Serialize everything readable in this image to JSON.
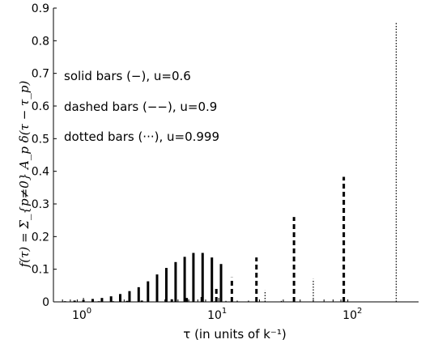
{
  "chart_data": {
    "type": "bar",
    "xscale": "log",
    "xlim": [
      0.6,
      300
    ],
    "ylim": [
      0,
      0.9
    ],
    "grid": false,
    "legend": "none",
    "xlabel": "τ (in units of k⁻¹)",
    "ylabel": "f(τ) = Σ_{p≠0} A_p δ(τ − τ_p)",
    "yticks": [
      "0",
      "0.1",
      "0.2",
      "0.3",
      "0.4",
      "0.5",
      "0.6",
      "0.7",
      "0.8",
      "0.9"
    ],
    "xticks": [
      {
        "base": "10",
        "exp": "0"
      },
      {
        "base": "10",
        "exp": "1"
      },
      {
        "base": "10",
        "exp": "2"
      }
    ],
    "annotations": [
      "solid bars (−), u=0.6",
      "dashed bars (−−), u=0.9",
      "dotted bars (···), u=0.999"
    ],
    "series": [
      {
        "style": "solid",
        "x": [
          0.73,
          0.86,
          1.0,
          1.17,
          1.37,
          1.6,
          1.87,
          2.19,
          2.56,
          3.0,
          3.5,
          4.1,
          4.8,
          5.6,
          6.5,
          7.6,
          8.9,
          10.4
        ],
        "values": [
          0.002,
          0.004,
          0.006,
          0.009,
          0.012,
          0.017,
          0.024,
          0.033,
          0.045,
          0.063,
          0.084,
          0.104,
          0.122,
          0.138,
          0.15,
          0.15,
          0.136,
          0.116
        ]
      },
      {
        "style": "dashed",
        "x": [
          0.85,
          1.05,
          1.3,
          1.65,
          2.1,
          2.7,
          3.5,
          4.5,
          5.8,
          7.5,
          9.6,
          12.5,
          19,
          36,
          84
        ],
        "values": [
          0.001,
          0.001,
          0.002,
          0.002,
          0.003,
          0.004,
          0.006,
          0.008,
          0.012,
          0.018,
          0.045,
          0.075,
          0.136,
          0.26,
          0.383
        ]
      },
      {
        "style": "dotted",
        "x": [
          4.3,
          5.2,
          6.3,
          7.7,
          9.3,
          11.3,
          13.7,
          16.6,
          22,
          29,
          50,
          205
        ],
        "values": [
          0.001,
          0.001,
          0.001,
          0.002,
          0.002,
          0.003,
          0.004,
          0.005,
          0.035,
          0.003,
          0.07,
          0.855
        ]
      }
    ]
  }
}
